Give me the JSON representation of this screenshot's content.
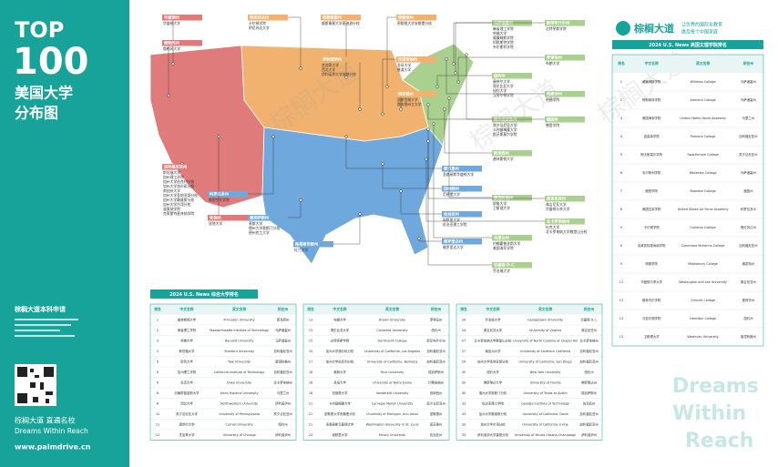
{
  "sidebar": {
    "title_top": "TOP",
    "title_num": "100",
    "title_cn": [
      "美国大学",
      "分布图"
    ],
    "promo_title": "棕榈大道本科申请",
    "slogan_cn": "棕榈大道  直通名校",
    "slogan_en": "Dreams Within Reach",
    "url": "www.palmdrive.cn"
  },
  "brand": {
    "name": "棕榈大道",
    "tagline": [
      "让优秀的国际化教育",
      "惠及每个中国家庭"
    ]
  },
  "watermark": [
    "Dreams",
    "Within",
    "Reach"
  ],
  "states": [
    {
      "name": "华盛顿州",
      "color": "#e07b7b",
      "items": [
        "华盛顿大学"
      ]
    },
    {
      "name": "俄勒冈州",
      "color": "#e07b7b",
      "items": [
        "俄勒冈大学"
      ]
    },
    {
      "name": "加利福尼亚州",
      "color": "#e07b7b",
      "items": [
        "斯坦福大学",
        "加州理工学院",
        "加州大学伯克利分校",
        "加州大学洛杉矶分校",
        "南加州大学",
        "加州大学圣地亚哥分校",
        "加州大学戴维斯分校",
        "加州大学尔湾分校",
        "波莫纳学院",
        "克莱蒙特麦肯纳学院"
      ]
    },
    {
      "name": "科罗拉多州",
      "color": "#6fa8dc",
      "items": [
        "美国空军学院"
      ]
    },
    {
      "name": "犹他州",
      "color": "#e07b7b",
      "items": [
        "犹他大学"
      ]
    },
    {
      "name": "明尼苏达州",
      "color": "#f0b26e",
      "items": [
        "卡尔顿学院",
        "明尼苏达大学"
      ]
    },
    {
      "name": "威斯康星州",
      "color": "#f0b26e",
      "items": [
        "威斯康星大学麦迪逊分校"
      ]
    },
    {
      "name": "伊利诺伊州",
      "color": "#f0b26e",
      "items": [
        "芝加哥大学",
        "西北大学",
        "伊利诺伊大学香槟分校"
      ]
    },
    {
      "name": "密歇根州",
      "color": "#f0b26e",
      "items": [
        "密歇根大学安娜堡分校"
      ]
    },
    {
      "name": "印第安纳州",
      "color": "#f0b26e",
      "items": [
        "圣母大学",
        "普渡大学"
      ]
    },
    {
      "name": "俄亥俄州",
      "color": "#f0b26e",
      "items": [
        "凯斯西储大学",
        "俄亥俄州立大学"
      ]
    },
    {
      "name": "德克萨斯州",
      "color": "#6fa8dc",
      "items": [
        "莱斯大学",
        "德州大学奥斯汀分校",
        "德州农工大学"
      ]
    },
    {
      "name": "路易斯安那州",
      "color": "#6fa8dc",
      "items": [
        "杜兰大学"
      ]
    },
    {
      "name": "密苏里州",
      "color": "#6fa8dc",
      "items": [
        "圣路易斯华盛顿大学"
      ]
    },
    {
      "name": "田纳西州",
      "color": "#6fa8dc",
      "items": [
        "范德堡大学"
      ]
    },
    {
      "name": "佐治亚州",
      "color": "#6fa8dc",
      "items": [
        "埃默里大学",
        "佐治亚理工学院"
      ]
    },
    {
      "name": "佛罗里达州",
      "color": "#6fa8dc",
      "items": [
        "佛罗里达大学"
      ]
    },
    {
      "name": "马萨诸塞州",
      "color": "#a9d08e",
      "items": [
        "麻省理工学院",
        "哈佛大学",
        "威廉姆斯学院",
        "阿默斯特学院",
        "韦尔斯利学院"
      ]
    },
    {
      "name": "纽约州",
      "color": "#a9d08e",
      "items": [
        "康奈尔大学",
        "哥伦比亚大学",
        "纽约大学",
        "汉密尔顿学院"
      ]
    },
    {
      "name": "宾夕法尼亚州",
      "color": "#a9d08e",
      "items": [
        "宾夕法尼亚大学",
        "卡内基梅隆大学",
        "斯沃斯莫尔学院"
      ]
    },
    {
      "name": "新泽西州",
      "color": "#a9d08e",
      "items": [
        "普林斯顿大学"
      ]
    },
    {
      "name": "康涅狄格州",
      "color": "#a9d08e",
      "items": [
        "耶鲁大学",
        "卫斯理大学"
      ]
    },
    {
      "name": "马里兰州",
      "color": "#a9d08e",
      "items": [
        "约翰霍普金斯大学",
        "美国海军学院"
      ]
    },
    {
      "name": "华盛顿 D.C.",
      "color": "#a9d08e",
      "items": [
        "乔治城大学"
      ]
    },
    {
      "name": "新罕布什尔州",
      "color": "#a9d08e",
      "items": [
        "达特茅斯学院"
      ]
    },
    {
      "name": "罗得岛州",
      "color": "#a9d08e",
      "items": [
        "布朗大学"
      ]
    },
    {
      "name": "佛蒙特州",
      "color": "#a9d08e",
      "items": [
        "明德学院"
      ]
    },
    {
      "name": "缅因州",
      "color": "#a9d08e",
      "items": [
        "鲍登学院"
      ]
    },
    {
      "name": "弗吉尼亚州",
      "color": "#a9d08e",
      "items": [
        "弗吉尼亚大学",
        "华盛顿与李大学"
      ]
    },
    {
      "name": "北卡罗来纳州",
      "color": "#a9d08e",
      "items": [
        "杜克大学",
        "北卡罗来纳大学教堂山分校"
      ]
    }
  ],
  "liberal_arts_table": {
    "title": "2024 U.S. News 美国文理学院排名",
    "columns": [
      "排名",
      "中文名称",
      "英文名称",
      "所在州"
    ],
    "rows": [
      [
        "1",
        "威廉姆斯学院",
        "Williams College",
        "马萨诸塞州"
      ],
      [
        "2",
        "阿默斯特学院",
        "Amherst College",
        "马萨诸塞州"
      ],
      [
        "3",
        "美国海军学院",
        "United States Naval Academy",
        "马里兰州"
      ],
      [
        "4",
        "波莫纳学院",
        "Pomona College",
        "加利福尼亚州"
      ],
      [
        "5",
        "斯沃斯莫尔学院",
        "Swarthmore College",
        "宾夕法尼亚州"
      ],
      [
        "6",
        "韦尔斯利学院",
        "Wellesley College",
        "马萨诸塞州"
      ],
      [
        "7",
        "鲍登学院",
        "Bowdoin College",
        "缅因州"
      ],
      [
        "8",
        "美国空军学院",
        "United States Air Force Academy",
        "科罗拉多州"
      ],
      [
        "9",
        "卡尔顿学院",
        "Carleton College",
        "明尼苏达州"
      ],
      [
        "9",
        "克莱蒙特麦肯纳学院",
        "Claremont McKenna College",
        "加利福尼亚州"
      ],
      [
        "9",
        "明德学院",
        "Middlebury College",
        "佛蒙特州"
      ],
      [
        "12",
        "华盛顿与李大学",
        "Washington and Lee University",
        "弗吉尼亚州"
      ],
      [
        "13",
        "格林内尔学院",
        "Grinnell College",
        "爱荷华州"
      ],
      [
        "13",
        "汉密尔顿学院",
        "Hamilton College",
        "纽约州"
      ],
      [
        "15",
        "卫斯理大学",
        "Wesleyan University",
        "康涅狄格州"
      ]
    ]
  },
  "national_table": {
    "title": "2024 U.S. News 综合大学排名",
    "columns": [
      "排名",
      "中文名称",
      "英文名称",
      "所在州"
    ],
    "rows": [
      [
        "1",
        "普林斯顿大学",
        "Princeton University",
        "新泽西州"
      ],
      [
        "2",
        "麻省理工学院",
        "Massachusetts Institute of Technology",
        "马萨诸塞州"
      ],
      [
        "3",
        "哈佛大学",
        "Harvard University",
        "马萨诸塞州"
      ],
      [
        "3",
        "斯坦福大学",
        "Stanford University",
        "加利福尼亚州"
      ],
      [
        "5",
        "耶鲁大学",
        "Yale University",
        "康涅狄格州"
      ],
      [
        "6",
        "加州理工学院",
        "California Institute of Technology",
        "加利福尼亚州"
      ],
      [
        "6",
        "杜克大学",
        "Duke University",
        "北卡罗来纳州"
      ],
      [
        "6",
        "约翰霍普金斯大学",
        "Johns Hopkins University",
        "马里兰州"
      ],
      [
        "6",
        "西北大学",
        "Northwestern University",
        "伊利诺伊州"
      ],
      [
        "10",
        "宾夕法尼亚大学",
        "University of Pennsylvania",
        "宾夕法尼亚州"
      ],
      [
        "11",
        "康奈尔大学",
        "Cornell University",
        "纽约州"
      ],
      [
        "12",
        "芝加哥大学",
        "University of Chicago",
        "伊利诺伊州"
      ],
      [
        "13",
        "布朗大学",
        "Brown University",
        "罗得岛州"
      ],
      [
        "13",
        "哥伦比亚大学",
        "Columbia University",
        "纽约州"
      ],
      [
        "15",
        "达特茅斯学院",
        "Dartmouth College",
        "新罕布什尔州"
      ],
      [
        "15",
        "加州大学洛杉矶分校",
        "University of California, Los Angeles",
        "加利福尼亚州"
      ],
      [
        "17",
        "加州大学伯克利分校",
        "University of California, Berkeley",
        "加利福尼亚州"
      ],
      [
        "18",
        "莱斯大学",
        "Rice University",
        "德克萨斯州"
      ],
      [
        "18",
        "圣母大学",
        "University of Notre Dame",
        "印第安纳州"
      ],
      [
        "18",
        "范德堡大学",
        "Vanderbilt University",
        "田纳西州"
      ],
      [
        "21",
        "卡内基梅隆大学",
        "Carnegie Mellon University",
        "宾夕法尼亚州"
      ],
      [
        "21",
        "密歇根大学安娜堡分校",
        "University of Michigan, Ann Arbor",
        "密歇根州"
      ],
      [
        "21",
        "圣路易斯华盛顿大学",
        "Washington University in St. Louis",
        "密苏里州"
      ],
      [
        "24",
        "埃默里大学",
        "Emory University",
        "佐治亚州"
      ],
      [
        "24",
        "乔治城大学",
        "Georgetown University",
        "华盛顿 D.C."
      ],
      [
        "24",
        "弗吉尼亚大学",
        "University of Virginia",
        "弗吉尼亚州"
      ],
      [
        "27",
        "北卡罗来纳大学教堂山分校",
        "University of North Carolina at Chapel Hill",
        "北卡罗来纳州"
      ],
      [
        "27",
        "南加州大学",
        "University of Southern California",
        "加利福尼亚州"
      ],
      [
        "29",
        "加州大学圣地亚哥分校",
        "University of California, San Diego",
        "加利福尼亚州"
      ],
      [
        "30",
        "纽约大学",
        "New York University",
        "纽约州"
      ],
      [
        "30",
        "佛罗里达大学",
        "University of Florida",
        "佛罗里达州"
      ],
      [
        "30",
        "德州大学奥斯汀分校",
        "University of Texas at Austin",
        "德克萨斯州"
      ],
      [
        "33",
        "佐治亚理工学院",
        "Georgia Institute of Technology",
        "佐治亚州"
      ],
      [
        "33",
        "加州大学戴维斯分校",
        "University of California, Davis",
        "加利福尼亚州"
      ],
      [
        "33",
        "加州大学尔湾分校",
        "University of California, Irvine",
        "加利福尼亚州"
      ],
      [
        "33",
        "伊利诺伊大学香槟分校",
        "University of Illinois Urbana-Champaign",
        "伊利诺伊州"
      ]
    ]
  }
}
